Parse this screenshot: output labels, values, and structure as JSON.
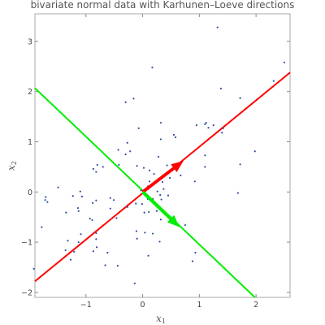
{
  "chart_data": {
    "type": "scatter",
    "title": "bivariate normal data with Karhunen–Loeve directions",
    "xlabel_symbol": "x",
    "xlabel_sub": "1",
    "ylabel_symbol": "x",
    "ylabel_sub": "2",
    "xlim": [
      -1.9,
      2.6
    ],
    "ylim": [
      -2.1,
      3.55
    ],
    "xticks": [
      -1,
      0,
      1,
      2
    ],
    "yticks": [
      -2,
      -1,
      0,
      1,
      2,
      3
    ],
    "points": [
      [
        1.32,
        3.28
      ],
      [
        0.17,
        2.48
      ],
      [
        -0.16,
        1.86
      ],
      [
        -0.3,
        1.79
      ],
      [
        1.38,
        2.06
      ],
      [
        1.72,
        1.87
      ],
      [
        2.5,
        2.58
      ],
      [
        2.31,
        2.21
      ],
      [
        1.12,
        1.38
      ],
      [
        1.16,
        1.28
      ],
      [
        1.1,
        1.35
      ],
      [
        0.95,
        1.33
      ],
      [
        1.25,
        1.33
      ],
      [
        1.4,
        1.18
      ],
      [
        1.42,
        1.27
      ],
      [
        1.98,
        0.81
      ],
      [
        0.32,
        1.38
      ],
      [
        0.55,
        1.14
      ],
      [
        0.58,
        1.09
      ],
      [
        0.32,
        1.05
      ],
      [
        -0.07,
        1.27
      ],
      [
        -0.27,
        0.98
      ],
      [
        -0.1,
        0.52
      ],
      [
        0.02,
        0.48
      ],
      [
        -0.22,
        0.81
      ],
      [
        -0.43,
        0.84
      ],
      [
        -0.42,
        0.54
      ],
      [
        -0.3,
        0.75
      ],
      [
        -0.7,
        0.5
      ],
      [
        -0.8,
        0.54
      ],
      [
        -0.87,
        0.46
      ],
      [
        -0.82,
        0.4
      ],
      [
        -1.49,
        0.09
      ],
      [
        -1.23,
        -0.08
      ],
      [
        -1.07,
        -0.09
      ],
      [
        -1.1,
        0.01
      ],
      [
        -1.71,
        -0.1
      ],
      [
        -1.72,
        -0.16
      ],
      [
        -1.68,
        -0.2
      ],
      [
        -1.35,
        -0.41
      ],
      [
        -1.14,
        -0.32
      ],
      [
        -1.13,
        -0.38
      ],
      [
        -0.89,
        -0.56
      ],
      [
        -0.93,
        -0.53
      ],
      [
        -0.88,
        -0.22
      ],
      [
        -0.82,
        -0.17
      ],
      [
        -0.57,
        -0.12
      ],
      [
        -0.51,
        -0.16
      ],
      [
        -0.57,
        -0.33
      ],
      [
        -0.27,
        -0.3
      ],
      [
        -0.46,
        -0.52
      ],
      [
        -0.12,
        -0.23
      ],
      [
        -0.01,
        -0.24
      ],
      [
        0.03,
        -0.41
      ],
      [
        0.11,
        -0.4
      ],
      [
        0.25,
        -0.29
      ],
      [
        0.25,
        -0.38
      ],
      [
        0.32,
        -0.55
      ],
      [
        0.18,
        -0.83
      ],
      [
        0.04,
        -0.81
      ],
      [
        -0.11,
        -0.78
      ],
      [
        -0.1,
        -0.93
      ],
      [
        -0.82,
        -0.82
      ],
      [
        -0.82,
        -0.94
      ],
      [
        -0.81,
        -1.1
      ],
      [
        -0.87,
        -1.18
      ],
      [
        -1.09,
        -0.84
      ],
      [
        -1.13,
        -1.0
      ],
      [
        -1.21,
        -1.19
      ],
      [
        -1.27,
        -1.35
      ],
      [
        -1.36,
        -1.16
      ],
      [
        -0.62,
        -1.21
      ],
      [
        -0.44,
        -1.47
      ],
      [
        -0.66,
        -1.46
      ],
      [
        -0.14,
        -1.82
      ],
      [
        0.1,
        -1.27
      ],
      [
        0.3,
        -0.99
      ],
      [
        0.75,
        -0.66
      ],
      [
        0.88,
        -1.38
      ],
      [
        0.93,
        -1.21
      ],
      [
        0.92,
        0.21
      ],
      [
        1.1,
        0.5
      ],
      [
        1.1,
        0.73
      ],
      [
        1.72,
        0.55
      ],
      [
        1.68,
        -0.02
      ],
      [
        0.2,
        0.36
      ],
      [
        0.12,
        0.43
      ],
      [
        0.47,
        0.42
      ],
      [
        0.43,
        0.53
      ],
      [
        0.59,
        0.45
      ],
      [
        0.67,
        0.33
      ],
      [
        0.48,
        0.28
      ],
      [
        0.35,
        0.2
      ],
      [
        0.26,
        0.01
      ],
      [
        0.37,
        0.06
      ],
      [
        0.45,
        -0.07
      ],
      [
        0.09,
        0.11
      ],
      [
        0.1,
        0.06
      ],
      [
        -0.03,
        0.03
      ],
      [
        0.09,
        -0.14
      ],
      [
        0.18,
        -0.14
      ],
      [
        0.33,
        -0.15
      ],
      [
        0.12,
        0.21
      ],
      [
        0.31,
        -0.06
      ],
      [
        0.28,
        0.7
      ],
      [
        -1.32,
        -0.97
      ],
      [
        -1.78,
        -0.7
      ],
      [
        -1.92,
        -1.53
      ]
    ],
    "kl_lines": [
      {
        "name": "",
        "color": "#ff0000",
        "p1": [
          -1.9,
          -1.78
        ],
        "p2": [
          2.6,
          2.38
        ]
      },
      {
        "name": "",
        "color": "#00ee00",
        "p1": [
          -1.9,
          2.07
        ],
        "p2": [
          1.98,
          -2.1
        ]
      }
    ],
    "kl_arrows": [
      {
        "color": "#ff0000",
        "from": [
          0.0,
          0.0
        ],
        "to": [
          0.72,
          0.62
        ]
      },
      {
        "color": "#00ee00",
        "from": [
          0.0,
          0.0
        ],
        "to": [
          0.65,
          -0.7
        ]
      }
    ],
    "colors": {
      "points": "#2f4f9f",
      "frame": "#aaaaaa",
      "tick": "#888888"
    }
  }
}
